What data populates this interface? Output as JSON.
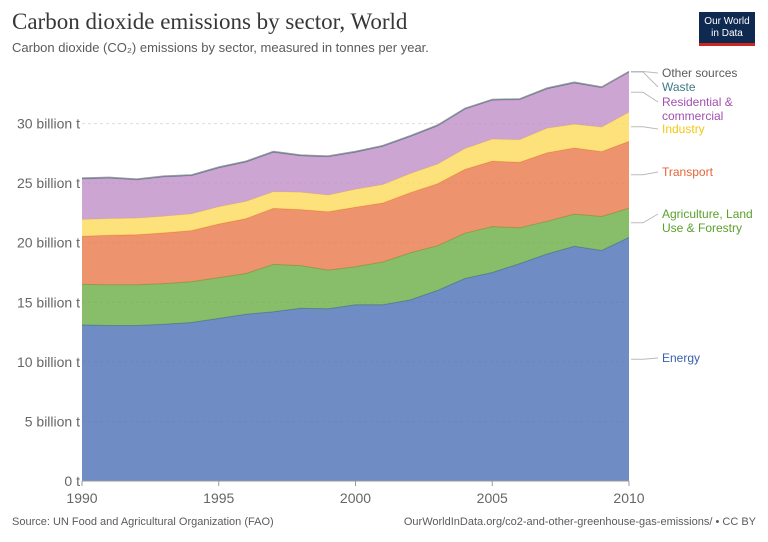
{
  "header": {
    "title": "Carbon dioxide emissions by sector, World",
    "subtitle": "Carbon dioxide (CO₂) emissions by sector, measured in tonnes per year."
  },
  "logo": {
    "line1": "Our World",
    "line2": "in Data"
  },
  "footer": {
    "source": "Source: UN Food and Agricultural Organization (FAO)",
    "url": "OurWorldInData.org/co2-and-other-greenhouse-gas-emissions/ • CC BY"
  },
  "chart_data": {
    "type": "area",
    "stacked": true,
    "title": "Carbon dioxide emissions by sector, World",
    "subtitle": "Carbon dioxide (CO₂) emissions by sector, measured in tonnes per year.",
    "x": [
      1990,
      1991,
      1992,
      1993,
      1994,
      1995,
      1996,
      1997,
      1998,
      1999,
      2000,
      2001,
      2002,
      2003,
      2004,
      2005,
      2006,
      2007,
      2008,
      2009,
      2010
    ],
    "xlim": [
      1990,
      2010
    ],
    "x_ticks": [
      "1990",
      "1995",
      "2000",
      "2005",
      "2010"
    ],
    "ylim": [
      0,
      35000000000
    ],
    "y_ticks": [
      {
        "value": 0,
        "label": "0 t"
      },
      {
        "value": 5000000000,
        "label": "5 billion t"
      },
      {
        "value": 10000000000,
        "label": "10 billion t"
      },
      {
        "value": 15000000000,
        "label": "15 billion t"
      },
      {
        "value": 20000000000,
        "label": "20 billion t"
      },
      {
        "value": 25000000000,
        "label": "25 billion t"
      },
      {
        "value": 30000000000,
        "label": "30 billion t"
      }
    ],
    "grid": true,
    "legend_placement": "right",
    "series": [
      {
        "name": "Energy",
        "color": "#4c6fb5",
        "values": [
          13100000000,
          13050000000,
          13050000000,
          13150000000,
          13300000000,
          13650000000,
          14000000000,
          14200000000,
          14500000000,
          14450000000,
          14800000000,
          14800000000,
          15200000000,
          16000000000,
          17000000000,
          17500000000,
          18250000000,
          19050000000,
          19700000000,
          19350000000,
          20450000000
        ]
      },
      {
        "name": "Agriculture, Land Use & Forestry",
        "color": "#6aac45",
        "values": [
          3400000000,
          3420000000,
          3420000000,
          3420000000,
          3420000000,
          3420000000,
          3420000000,
          3980000000,
          3580000000,
          3250000000,
          3180000000,
          3580000000,
          3950000000,
          3750000000,
          3800000000,
          3850000000,
          3000000000,
          2750000000,
          2700000000,
          2850000000,
          2450000000
        ]
      },
      {
        "name": "Transport",
        "color": "#e8794b",
        "values": [
          4050000000,
          4150000000,
          4200000000,
          4250000000,
          4300000000,
          4500000000,
          4600000000,
          4700000000,
          4700000000,
          4900000000,
          5000000000,
          4950000000,
          5050000000,
          5200000000,
          5350000000,
          5500000000,
          5500000000,
          5750000000,
          5550000000,
          5450000000,
          5600000000
        ]
      },
      {
        "name": "Industry",
        "color": "#fdda59",
        "values": [
          1400000000,
          1400000000,
          1400000000,
          1400000000,
          1400000000,
          1450000000,
          1450000000,
          1400000000,
          1450000000,
          1400000000,
          1500000000,
          1550000000,
          1600000000,
          1650000000,
          1750000000,
          1850000000,
          1900000000,
          2050000000,
          2000000000,
          2050000000,
          2450000000
        ]
      },
      {
        "name": "Residential & commercial",
        "color": "#c08fc8",
        "values": [
          3400000000,
          3400000000,
          3200000000,
          3300000000,
          3200000000,
          3250000000,
          3300000000,
          3300000000,
          3050000000,
          3200000000,
          3100000000,
          3200000000,
          3100000000,
          3200000000,
          3300000000,
          3250000000,
          3350000000,
          3300000000,
          3450000000,
          3300000000,
          3350000000
        ]
      },
      {
        "name": "Waste",
        "color": "#3d7a86",
        "values": [
          50000000,
          50000000,
          50000000,
          50000000,
          50000000,
          50000000,
          50000000,
          50000000,
          50000000,
          50000000,
          50000000,
          50000000,
          50000000,
          50000000,
          50000000,
          50000000,
          50000000,
          50000000,
          50000000,
          50000000,
          50000000
        ]
      },
      {
        "name": "Other sources",
        "color": "#9a9a9a",
        "values": [
          40000000,
          40000000,
          40000000,
          40000000,
          40000000,
          40000000,
          40000000,
          40000000,
          40000000,
          40000000,
          40000000,
          40000000,
          40000000,
          40000000,
          40000000,
          40000000,
          40000000,
          40000000,
          40000000,
          40000000,
          40000000
        ]
      }
    ],
    "legend_labels": [
      {
        "series": "Other sources",
        "lines": [
          "Other sources"
        ],
        "color": "#5b5b5b"
      },
      {
        "series": "Waste",
        "lines": [
          "Waste"
        ],
        "color": "#3d7a86"
      },
      {
        "series": "Residential & commercial",
        "lines": [
          "Residential &",
          "commercial"
        ],
        "color": "#a24fb0"
      },
      {
        "series": "Industry",
        "lines": [
          "Industry"
        ],
        "color": "#f2c811"
      },
      {
        "series": "Transport",
        "lines": [
          "Transport"
        ],
        "color": "#e2663a"
      },
      {
        "series": "Agriculture, Land Use & Forestry",
        "lines": [
          "Agriculture, Land",
          "Use & Forestry"
        ],
        "color": "#5aa02c"
      },
      {
        "series": "Energy",
        "lines": [
          "Energy"
        ],
        "color": "#3a60ad"
      }
    ]
  }
}
